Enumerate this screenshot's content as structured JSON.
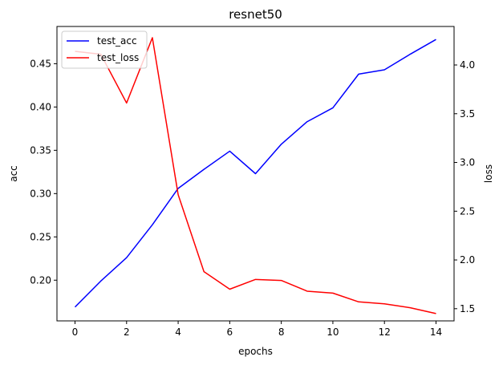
{
  "chart_data": {
    "type": "line",
    "title": "resnet50",
    "xlabel": "epochs",
    "ylabel_left": "acc",
    "ylabel_right": "loss",
    "x": [
      0,
      1,
      2,
      3,
      4,
      5,
      6,
      7,
      8,
      9,
      10,
      11,
      12,
      13,
      14
    ],
    "xlim": [
      -0.7,
      14.7
    ],
    "xticks": [
      0,
      2,
      4,
      6,
      8,
      10,
      12,
      14
    ],
    "ylim_left": [
      0.153,
      0.493
    ],
    "yticks_left": [
      0.2,
      0.25,
      0.3,
      0.35,
      0.4,
      0.45
    ],
    "ylim_right": [
      1.375,
      4.395
    ],
    "yticks_right": [
      1.5,
      2.0,
      2.5,
      3.0,
      3.5,
      4.0
    ],
    "grid": false,
    "legend_position": "upper-left",
    "series": [
      {
        "name": "test_acc",
        "axis": "left",
        "color": "#0000ff",
        "values": [
          0.169,
          0.199,
          0.226,
          0.264,
          0.306,
          0.328,
          0.349,
          0.323,
          0.357,
          0.383,
          0.399,
          0.438,
          0.443,
          0.461,
          0.478
        ]
      },
      {
        "name": "test_loss",
        "axis": "right",
        "color": "#ff0000",
        "values": [
          4.14,
          4.11,
          3.61,
          4.28,
          2.67,
          1.88,
          1.7,
          1.8,
          1.79,
          1.68,
          1.66,
          1.57,
          1.55,
          1.51,
          1.45
        ]
      }
    ]
  }
}
